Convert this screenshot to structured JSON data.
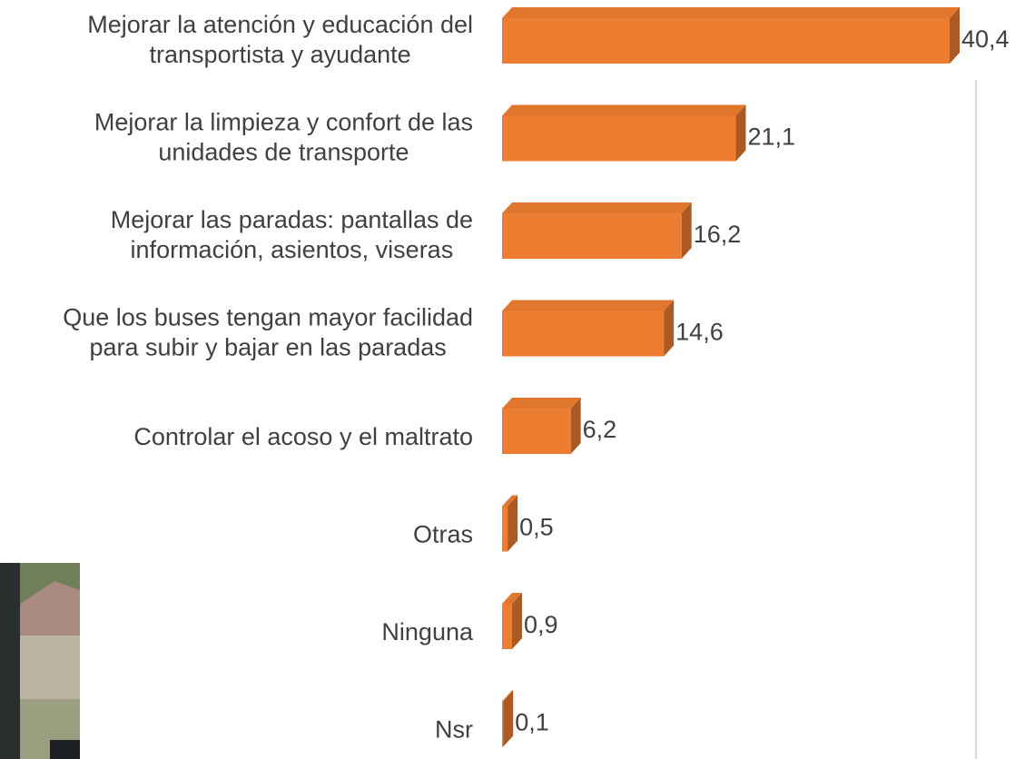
{
  "chart_data": {
    "type": "bar3d-horizontal",
    "categories": [
      "Mejorar la atención y educación del\ntransportista y ayudante",
      "Mejorar la limpieza y confort de las\nunidades de transporte",
      "Mejorar las paradas: pantallas de\ninformación, asientos, viseras",
      "Que los buses tengan mayor facilidad\npara subir y bajar en las paradas",
      "Controlar el acoso y el maltrato",
      "Otras",
      "Ninguna",
      "Nsr"
    ],
    "values": [
      40.4,
      21.1,
      16.2,
      14.6,
      6.2,
      0.5,
      0.9,
      0.1
    ],
    "value_labels": [
      "40,4",
      "21,1",
      "16,2",
      "14,6",
      "6,2",
      "0,5",
      "0,9",
      "0,1"
    ],
    "color": "#ED7D31"
  }
}
